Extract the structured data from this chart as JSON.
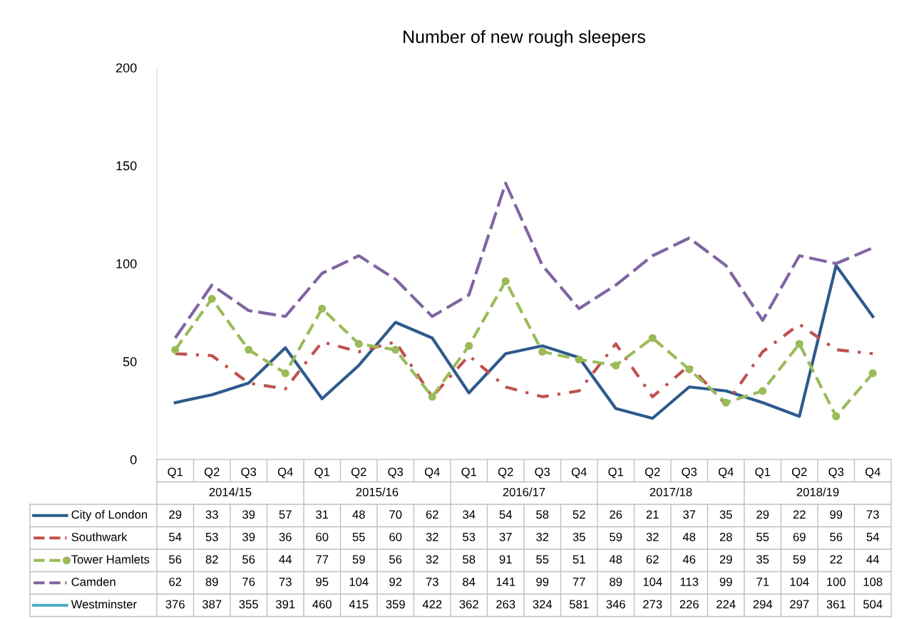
{
  "chart_data": {
    "type": "line",
    "title": "Number of new rough sleepers",
    "categories": [
      "Q1",
      "Q2",
      "Q3",
      "Q4",
      "Q1",
      "Q2",
      "Q3",
      "Q4",
      "Q1",
      "Q2",
      "Q3",
      "Q4",
      "Q1",
      "Q2",
      "Q3",
      "Q4",
      "Q1",
      "Q2",
      "Q3",
      "Q4"
    ],
    "annotations": [
      "2014/15",
      "2015/16",
      "2016/17",
      "2017/18",
      "2018/19"
    ],
    "ylim": [
      0,
      200
    ],
    "yticks": [
      0,
      50,
      100,
      150,
      200
    ],
    "grid": false,
    "legend": "bottom",
    "data_labels": true,
    "series": [
      {
        "name": "City of London",
        "color": "#2e5a8c",
        "line_style": "solid",
        "marker": "none",
        "values": [
          29,
          33,
          39,
          57,
          31,
          48,
          70,
          62,
          34,
          54,
          58,
          52,
          26,
          21,
          37,
          35,
          29,
          22,
          99,
          73
        ]
      },
      {
        "name": "Southwark",
        "color": "#c0504d",
        "line_style": "dashdot",
        "marker": "none",
        "values": [
          54,
          53,
          39,
          36,
          60,
          55,
          60,
          32,
          53,
          37,
          32,
          35,
          59,
          32,
          48,
          28,
          55,
          69,
          56,
          54
        ]
      },
      {
        "name": "Tower Hamlets",
        "color": "#9bbb59",
        "line_style": "dashed",
        "marker": "circle",
        "values": [
          56,
          82,
          56,
          44,
          77,
          59,
          56,
          32,
          58,
          91,
          55,
          51,
          48,
          62,
          46,
          29,
          35,
          59,
          22,
          44
        ]
      },
      {
        "name": "Camden",
        "color": "#8064a2",
        "line_style": "longdash",
        "marker": "none",
        "values": [
          62,
          89,
          76,
          73,
          95,
          104,
          92,
          73,
          84,
          141,
          99,
          77,
          89,
          104,
          113,
          99,
          71,
          104,
          100,
          108
        ]
      },
      {
        "name": "Westminster",
        "color": "#4bacc6",
        "line_style": "solid",
        "marker": "none",
        "values": [
          null,
          null,
          null,
          null,
          null,
          null,
          null,
          null,
          null,
          null,
          null,
          null,
          null,
          null,
          null,
          null,
          null,
          null,
          null,
          null
        ],
        "value_labels": [
          "376",
          "387",
          "355",
          "391",
          "460",
          "415",
          "359",
          "422",
          "362",
          "263",
          "324",
          "581",
          "346",
          "273",
          "226",
          "224",
          "294",
          "297",
          "361",
          "504"
        ]
      }
    ]
  }
}
